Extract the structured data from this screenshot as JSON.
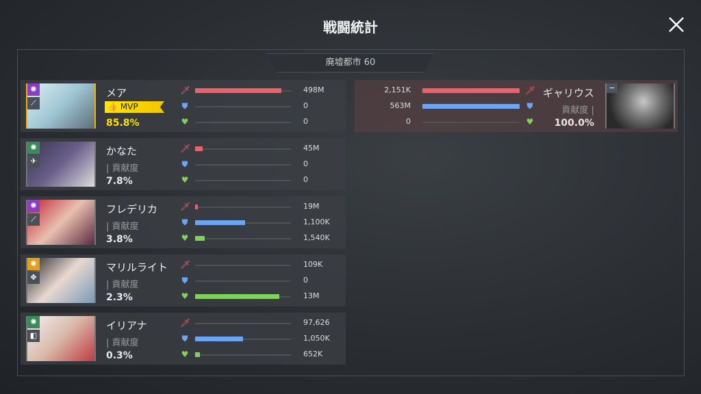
{
  "header": {
    "title": "戦闘統計",
    "stage": "廃墟都市 60"
  },
  "colors": {
    "attack": "#f0606a",
    "defense": "#6aa6f5",
    "heal": "#7ed45a",
    "mvp": "#ffe000"
  },
  "labels": {
    "contribution": "| 貢献度",
    "contribution_enemy": "貢献度 |",
    "mvp": "MVP"
  },
  "allies": [
    {
      "name": "メア",
      "mvp": true,
      "percent": "85.8%",
      "role_color": "#8a3fc0",
      "class_icon": "sword-icon",
      "stats": [
        {
          "type": "attack",
          "value": "498M",
          "fill": 0.9
        },
        {
          "type": "defense",
          "value": "0",
          "fill": 0
        },
        {
          "type": "heal",
          "value": "0",
          "fill": 0
        }
      ]
    },
    {
      "name": "かなた",
      "mvp": false,
      "percent": "7.8%",
      "role_color": "#3a8a5a",
      "class_icon": "plane-icon",
      "stats": [
        {
          "type": "attack",
          "value": "45M",
          "fill": 0.08
        },
        {
          "type": "defense",
          "value": "0",
          "fill": 0
        },
        {
          "type": "heal",
          "value": "0",
          "fill": 0
        }
      ]
    },
    {
      "name": "フレデリカ",
      "mvp": false,
      "percent": "3.8%",
      "role_color": "#8a3fc0",
      "class_icon": "sword-icon",
      "stats": [
        {
          "type": "attack",
          "value": "19M",
          "fill": 0.03
        },
        {
          "type": "defense",
          "value": "1,100K",
          "fill": 0.52
        },
        {
          "type": "heal",
          "value": "1,540K",
          "fill": 0.1
        }
      ]
    },
    {
      "name": "マリルライト",
      "mvp": false,
      "percent": "2.3%",
      "role_color": "#e0a020",
      "class_icon": "crosshair-icon",
      "stats": [
        {
          "type": "attack",
          "value": "109K",
          "fill": 0
        },
        {
          "type": "defense",
          "value": "0",
          "fill": 0
        },
        {
          "type": "heal",
          "value": "13M",
          "fill": 0.88
        }
      ]
    },
    {
      "name": "イリアナ",
      "mvp": false,
      "percent": "0.3%",
      "role_color": "#3a8a5a",
      "class_icon": "shield-icon",
      "stats": [
        {
          "type": "attack",
          "value": "97,626",
          "fill": 0
        },
        {
          "type": "defense",
          "value": "1,050K",
          "fill": 0.5
        },
        {
          "type": "heal",
          "value": "652K",
          "fill": 0.05
        }
      ]
    }
  ],
  "enemy": {
    "name": "ギャリウス",
    "percent": "100.0%",
    "stats": [
      {
        "type": "attack",
        "value": "2,151K",
        "fill": 1
      },
      {
        "type": "defense",
        "value": "563M",
        "fill": 1
      },
      {
        "type": "heal",
        "value": "0",
        "fill": 0
      }
    ]
  }
}
